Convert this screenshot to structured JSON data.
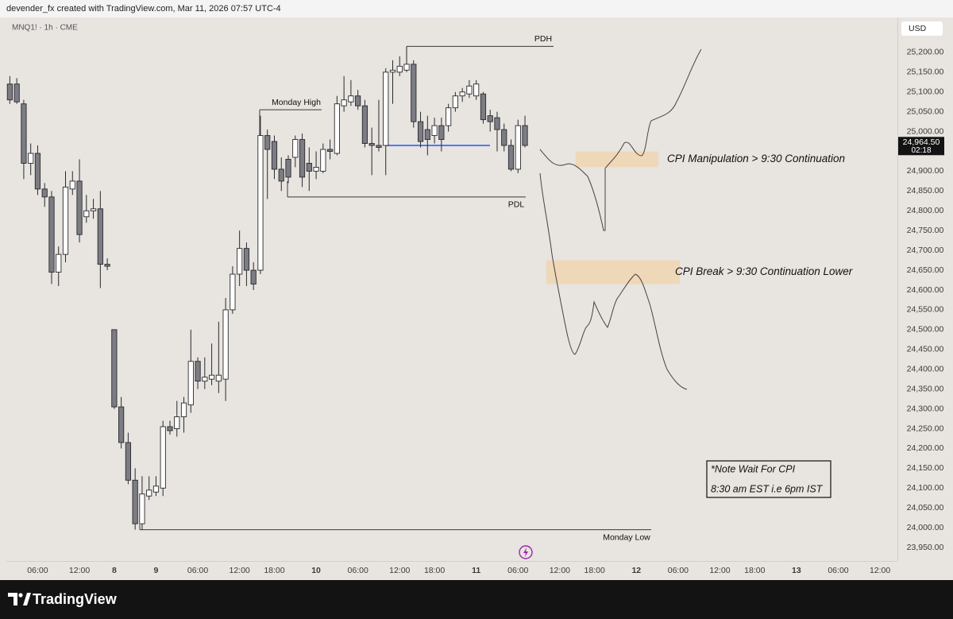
{
  "header": {
    "attribution": "devender_fx created with TradingView.com, Mar 11, 2026 07:57 UTC-4"
  },
  "footer": {
    "brand": "TradingView"
  },
  "chart_data": {
    "type": "candlestick",
    "symbol": "MNQ1! · 1h · CME",
    "currency": "USD",
    "up_color": "#ffffff",
    "down_color": "#7c7c84",
    "outline_color": "#2a2a2e",
    "grid": false,
    "ylim": [
      23916,
      25288
    ],
    "yticks": [
      {
        "value": 23950,
        "label": "23,950.00"
      },
      {
        "value": 24000,
        "label": "24,000.00"
      },
      {
        "value": 24050,
        "label": "24,050.00"
      },
      {
        "value": 24100,
        "label": "24,100.00"
      },
      {
        "value": 24150,
        "label": "24,150.00"
      },
      {
        "value": 24200,
        "label": "24,200.00"
      },
      {
        "value": 24250,
        "label": "24,250.00"
      },
      {
        "value": 24300,
        "label": "24,300.00"
      },
      {
        "value": 24350,
        "label": "24,350.00"
      },
      {
        "value": 24400,
        "label": "24,400.00"
      },
      {
        "value": 24450,
        "label": "24,450.00"
      },
      {
        "value": 24500,
        "label": "24,500.00"
      },
      {
        "value": 24550,
        "label": "24,550.00"
      },
      {
        "value": 24600,
        "label": "24,600.00"
      },
      {
        "value": 24650,
        "label": "24,650.00"
      },
      {
        "value": 24700,
        "label": "24,700.00"
      },
      {
        "value": 24750,
        "label": "24,750.00"
      },
      {
        "value": 24800,
        "label": "24,800.00"
      },
      {
        "value": 24850,
        "label": "24,850.00"
      },
      {
        "value": 24900,
        "label": "24,900.00"
      },
      {
        "value": 24950,
        "label": "24,950.00"
      },
      {
        "value": 25000,
        "label": "25,000.00"
      },
      {
        "value": 25050,
        "label": "25,050.00"
      },
      {
        "value": 25100,
        "label": "25,100.00"
      },
      {
        "value": 25150,
        "label": "25,150.00"
      },
      {
        "value": 25200,
        "label": "25,200.00"
      }
    ],
    "categories": [
      null,
      null,
      null,
      null,
      "06:00",
      null,
      null,
      null,
      null,
      null,
      "12:00",
      null,
      null,
      null,
      null,
      "8",
      null,
      null,
      null,
      null,
      null,
      "9",
      null,
      null,
      null,
      null,
      null,
      "06:00",
      null,
      null,
      null,
      null,
      null,
      "12:00",
      null,
      null,
      null,
      null,
      "18:00",
      null,
      null,
      null,
      null,
      null,
      "10",
      null,
      null,
      null,
      null,
      null,
      "06:00",
      null,
      null,
      null,
      null,
      null,
      "12:00",
      null,
      null,
      null,
      null,
      "18:00",
      null,
      null,
      null,
      null,
      null,
      "11",
      null,
      null,
      null,
      null,
      null,
      "06:00",
      null,
      null,
      null,
      null,
      null,
      "12:00",
      null,
      null,
      null,
      null,
      "18:00",
      null,
      null,
      null,
      null,
      null,
      "12",
      null,
      null,
      null,
      null,
      null,
      "06:00",
      null,
      null,
      null,
      null,
      null,
      "12:00",
      null,
      null,
      null,
      null,
      "18:00",
      null,
      null,
      null,
      null,
      null,
      "13",
      null,
      null,
      null,
      null,
      null,
      "06:00",
      null,
      null,
      null,
      null,
      null,
      "12:00",
      null,
      null
    ],
    "open": [
      25120,
      25120,
      25070,
      24920,
      24945,
      24855,
      24835,
      24645,
      24690,
      24855,
      24875,
      24785,
      24800,
      24805,
      24665,
      24500,
      24305,
      24215,
      24120,
      24010,
      24080,
      24090,
      24100,
      24255,
      24250,
      24280,
      24310,
      24420,
      24370,
      24375,
      24370,
      24375,
      24550,
      24640,
      24705,
      24650,
      24650,
      24990,
      24975,
      24905,
      24930,
      24935,
      24980,
      24920,
      24900,
      24900,
      24955,
      24945,
      25065,
      25075,
      25090,
      25065,
      24970,
      24965,
      24965,
      25150,
      25150,
      25155,
      25170,
      25025,
      25005,
      24990,
      25015,
      25015,
      25060,
      25090,
      25095,
      25090,
      25095,
      25040,
      25035,
      25005,
      24965,
      24905,
      25015,
      null,
      null,
      null,
      null,
      null,
      null,
      null,
      null,
      null,
      null,
      null,
      null,
      null,
      null,
      null,
      null,
      null,
      null,
      null,
      null,
      null,
      null,
      null,
      null,
      null,
      null,
      null,
      null,
      null,
      null,
      null,
      null,
      null,
      null,
      null,
      null,
      null,
      null,
      null,
      null,
      null,
      null,
      null,
      null,
      null,
      null,
      null,
      null,
      null,
      null,
      null,
      null,
      null
    ],
    "high": [
      25140,
      25135,
      25080,
      24970,
      24965,
      24870,
      24850,
      24710,
      24900,
      24900,
      24930,
      24840,
      24830,
      24850,
      24680,
      24500,
      24330,
      24240,
      24150,
      24130,
      24130,
      24130,
      24270,
      24270,
      24320,
      24330,
      24500,
      24430,
      24430,
      24465,
      24520,
      24580,
      24660,
      24750,
      24720,
      24670,
      25040,
      25005,
      24990,
      24935,
      24940,
      24990,
      24995,
      24960,
      24950,
      24970,
      24980,
      25090,
      25140,
      25130,
      25105,
      25080,
      25010,
      25080,
      25160,
      25180,
      25190,
      25215,
      25180,
      25050,
      25040,
      25035,
      25035,
      25070,
      25100,
      25110,
      25130,
      25130,
      25100,
      25055,
      25050,
      25020,
      24980,
      25030,
      25040,
      null,
      null,
      null,
      null,
      null,
      null,
      null,
      null,
      null,
      null,
      null,
      null,
      null,
      null,
      null,
      null,
      null,
      null,
      null,
      null,
      null,
      null,
      null,
      null,
      null,
      null,
      null,
      null,
      null,
      null,
      null,
      null,
      null,
      null,
      null,
      null,
      null,
      null,
      null,
      null,
      null,
      null,
      null,
      null,
      null,
      null,
      null,
      null,
      null,
      null,
      null,
      null,
      null
    ],
    "low": [
      25070,
      25070,
      24880,
      24890,
      24840,
      24810,
      24615,
      24610,
      24670,
      24840,
      24720,
      24770,
      24780,
      24605,
      24650,
      24300,
      24200,
      24110,
      23995,
      23995,
      24070,
      24080,
      24080,
      24235,
      24230,
      24240,
      24290,
      24350,
      24350,
      24360,
      24340,
      24320,
      24540,
      24610,
      24610,
      24600,
      24640,
      24830,
      24880,
      24850,
      24870,
      24910,
      24860,
      24850,
      24880,
      24895,
      24930,
      24940,
      25050,
      25065,
      25055,
      24960,
      24890,
      24950,
      24890,
      25070,
      25140,
      25150,
      25010,
      24960,
      24940,
      24970,
      24950,
      25000,
      25050,
      25075,
      25085,
      25080,
      25020,
      25000,
      24950,
      24950,
      24900,
      24895,
      24960,
      null,
      null,
      null,
      null,
      null,
      null,
      null,
      null,
      null,
      null,
      null,
      null,
      null,
      null,
      null,
      null,
      null,
      null,
      null,
      null,
      null,
      null,
      null,
      null,
      null,
      null,
      null,
      null,
      null,
      null,
      null,
      null,
      null,
      null,
      null,
      null,
      null,
      null,
      null,
      null,
      null,
      null,
      null,
      null,
      null,
      null,
      null,
      null,
      null,
      null,
      null,
      null,
      null
    ],
    "close": [
      25080,
      25075,
      24920,
      24945,
      24855,
      24835,
      24645,
      24690,
      24860,
      24875,
      24740,
      24800,
      24805,
      24665,
      24660,
      24305,
      24215,
      24120,
      24010,
      24085,
      24095,
      24105,
      24255,
      24245,
      24280,
      24315,
      24420,
      24370,
      24380,
      24385,
      24385,
      24550,
      24640,
      24705,
      24650,
      24615,
      24990,
      24955,
      24905,
      24875,
      24885,
      24980,
      24885,
      24900,
      24910,
      24955,
      24950,
      25070,
      25080,
      25090,
      25065,
      24970,
      24965,
      24960,
      25150,
      25155,
      25165,
      25170,
      25025,
      24975,
      24980,
      25015,
      24980,
      25060,
      25090,
      25100,
      25115,
      25120,
      25030,
      25025,
      25005,
      24965,
      24905,
      25015,
      24965,
      null,
      null,
      null,
      null,
      null,
      null,
      null,
      null,
      null,
      null,
      null,
      null,
      null,
      null,
      null,
      null,
      null,
      null,
      null,
      null,
      null,
      null,
      null,
      null,
      null,
      null,
      null,
      null,
      null,
      null,
      null,
      null,
      null,
      null,
      null,
      null,
      null,
      null,
      null,
      null,
      null,
      null,
      null,
      null,
      null,
      null,
      null,
      null,
      null,
      null,
      null,
      null,
      null
    ],
    "last_price": {
      "value": 24964.5,
      "label": "24,964.50"
    },
    "countdown": "02:18",
    "level_color": "#3a3a3a",
    "levels": [
      {
        "label": "PDH",
        "value": 25215
      },
      {
        "label": "Monday High",
        "value": 25055
      },
      {
        "label": "PDL",
        "value": 24835
      },
      {
        "label": "Monday Low",
        "value": 23995
      },
      {
        "value": 24965,
        "color": "#2962ff"
      }
    ],
    "zone_color": "#f0d6b2",
    "zones": [
      {
        "label": "CPI Manipulation > 9:30 Continuation",
        "top": 24950,
        "bottom": 24910
      },
      {
        "label": "CPI Break > 9:30 Continuation Lower",
        "top": 24675,
        "bottom": 24615
      }
    ],
    "note": [
      "*Note Wait For CPI",
      "8:30 am EST i.e 6pm IST"
    ]
  }
}
